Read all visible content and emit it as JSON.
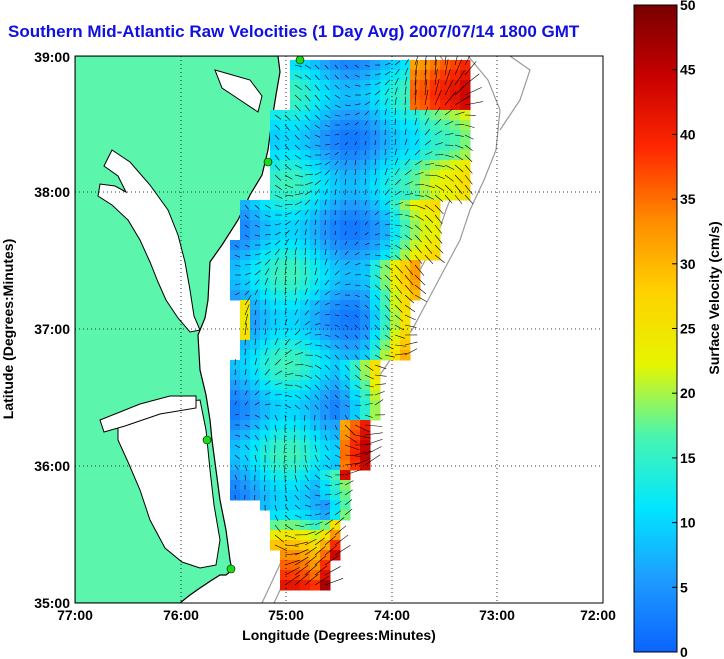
{
  "chart_data": {
    "type": "heatmap",
    "title": "Southern Mid-Atlantic Raw Velocities (1 Day Avg) 2007/07/14 1800 GMT",
    "xlabel": "Longitude (Degrees:Minutes)",
    "ylabel": "Latitude (Degrees:Minutes)",
    "xlim": [
      "77:00",
      "72:00"
    ],
    "ylim": [
      "35:00",
      "39:00"
    ],
    "x_ticks": [
      "77:00",
      "76:00",
      "75:00",
      "74:00",
      "73:00",
      "72:00"
    ],
    "y_ticks": [
      "35:00",
      "36:00",
      "37:00",
      "38:00",
      "39:00"
    ],
    "grid": "dotted",
    "colorbar": {
      "label": "Surface Velocity (cm/s)",
      "min": 0,
      "max": 50,
      "ticks": [
        "0",
        "5",
        "10",
        "15",
        "20",
        "25",
        "30",
        "35",
        "40",
        "45",
        "50"
      ],
      "colors": [
        "#0a64ff",
        "#1e9bff",
        "#00e6ff",
        "#48f5b0",
        "#e6f500",
        "#ffd200",
        "#ff8c00",
        "#ff2800",
        "#c80000",
        "#780000"
      ]
    },
    "colors": {
      "land": "#5cf5ac",
      "coast": "#000000",
      "isobath": "#9a9a9a",
      "arrows": "#000000",
      "sites": "#18dc18",
      "title": "#1010e0"
    }
  }
}
